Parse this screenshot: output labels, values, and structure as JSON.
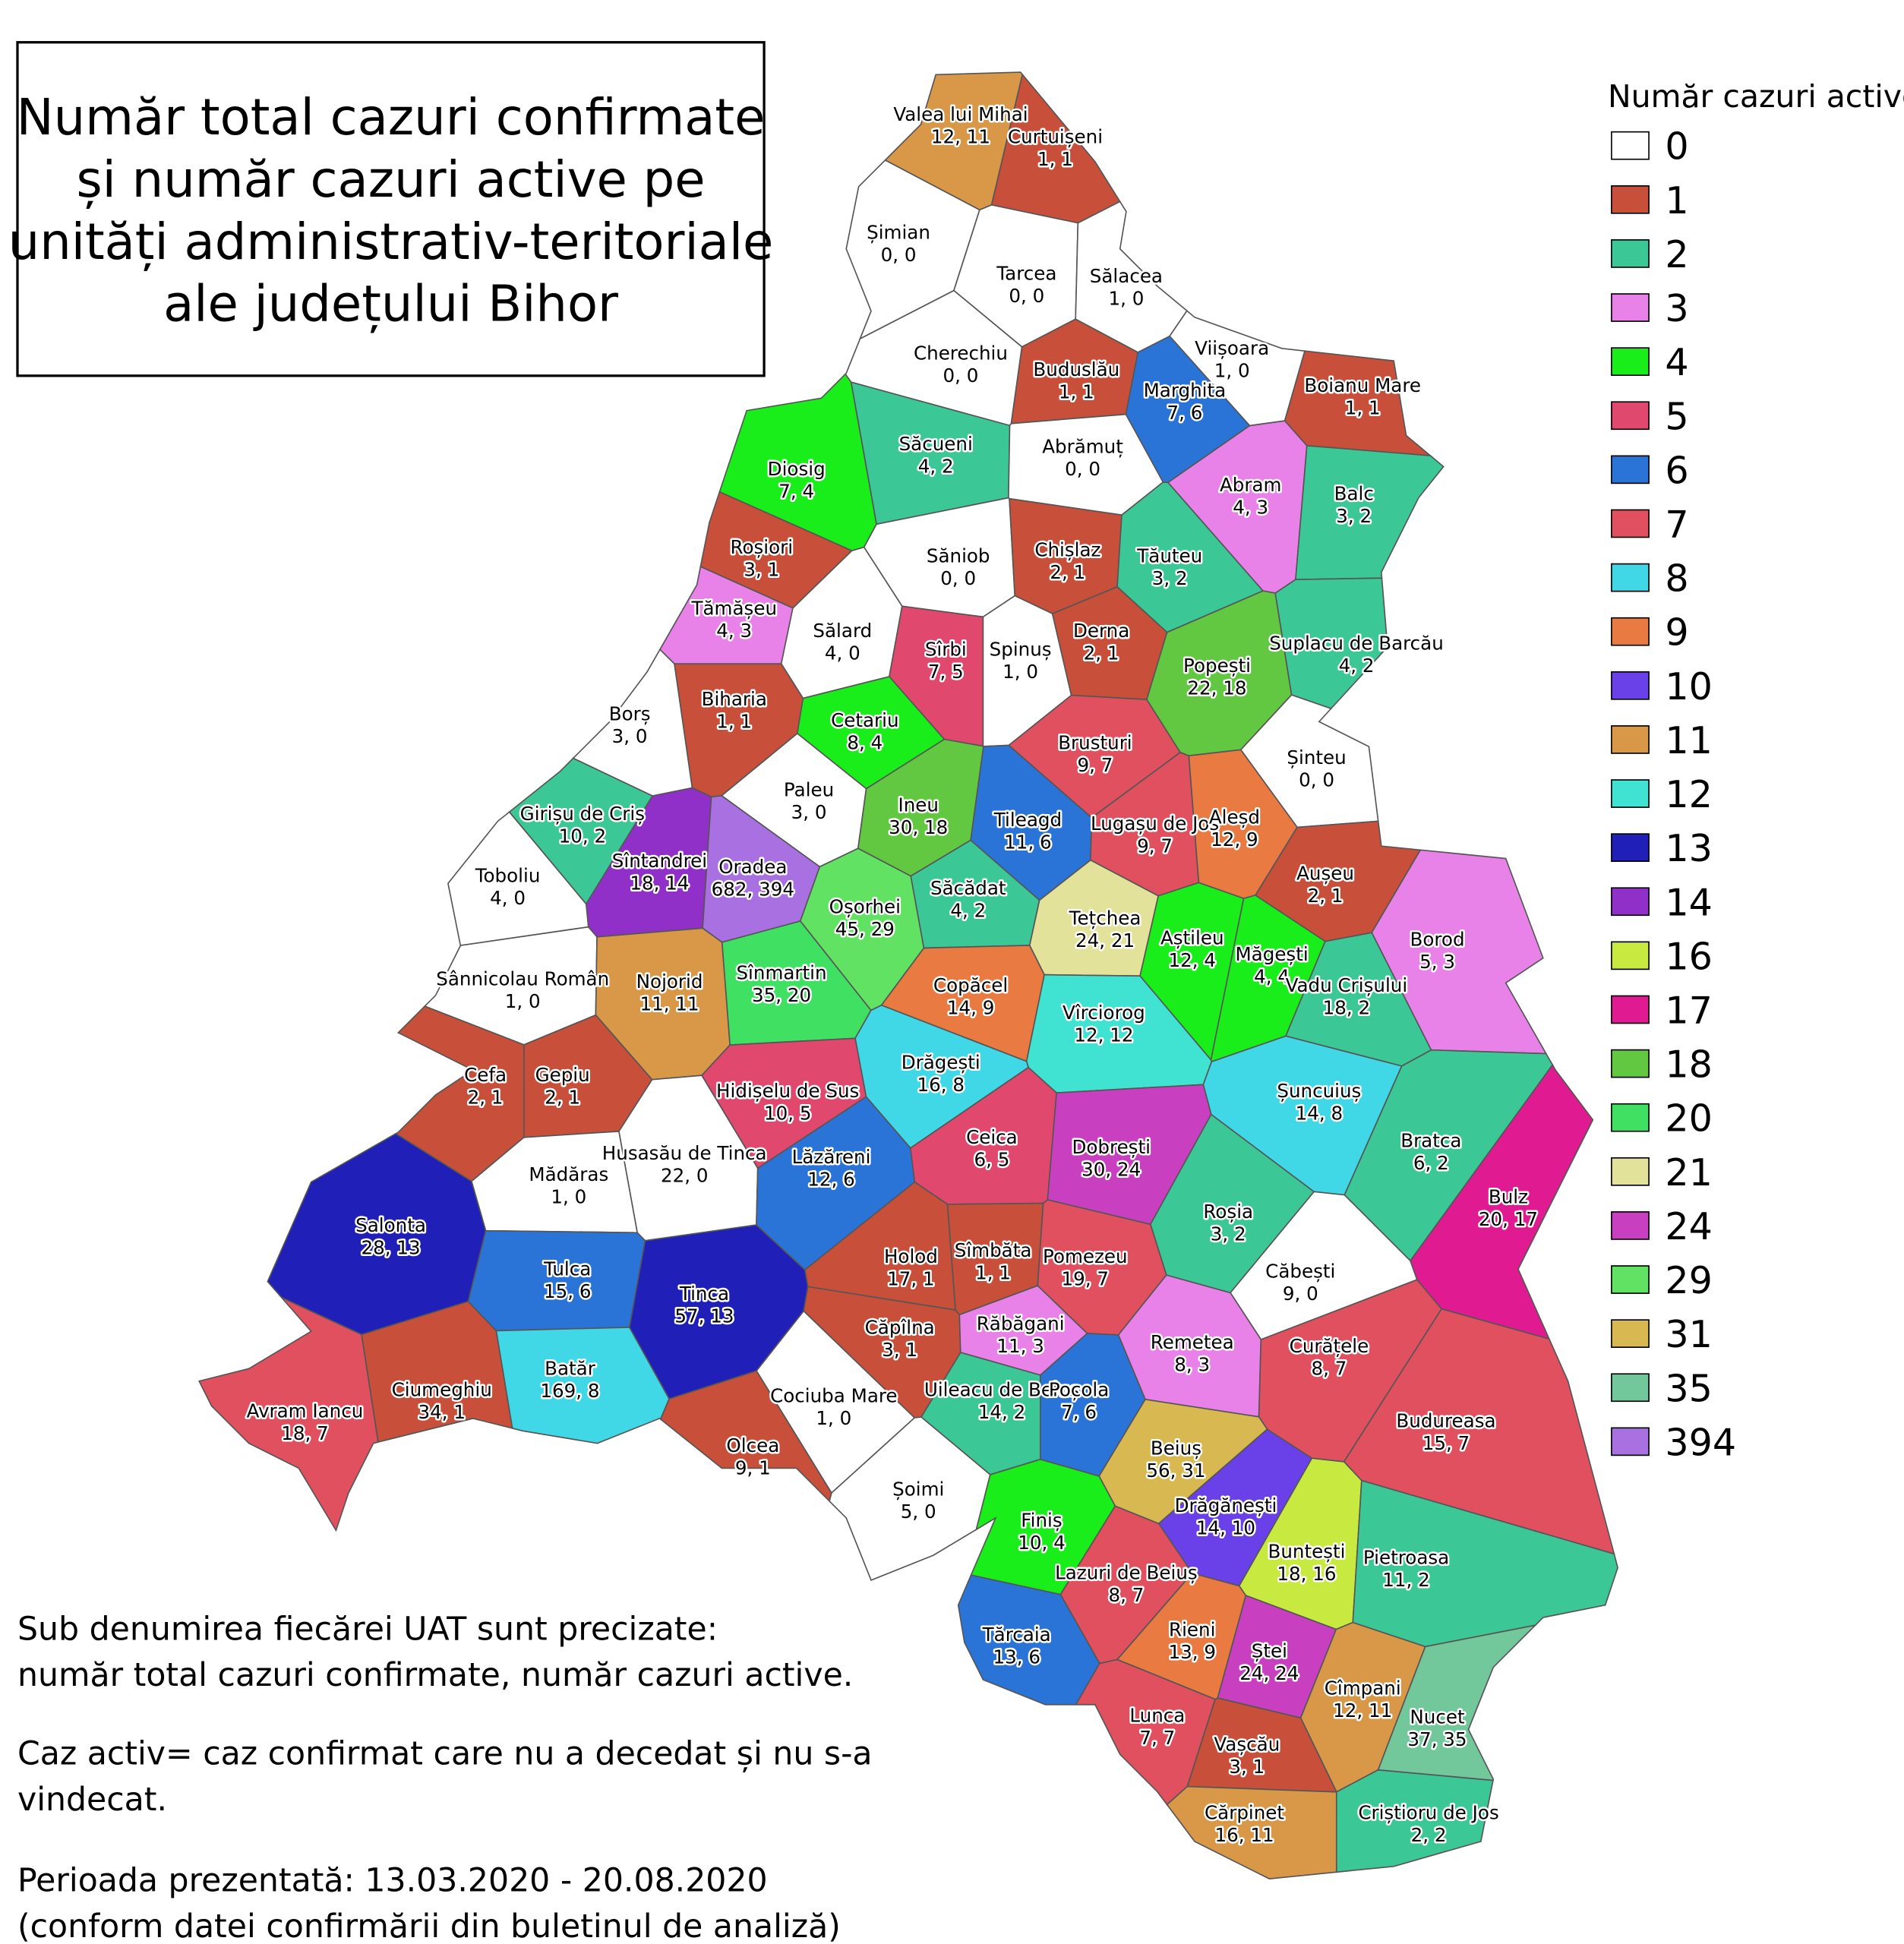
{
  "title": {
    "lines": [
      "Număr total cazuri confirmate",
      "și număr cazuri active pe",
      "unități administrativ-teritoriale",
      "ale județului Bihor"
    ]
  },
  "legend": {
    "title": "Număr cazuri active",
    "items": [
      {
        "label": 0,
        "color": "#ffffff"
      },
      {
        "label": 1,
        "color": "#c8503a"
      },
      {
        "label": 2,
        "color": "#3cc896"
      },
      {
        "label": 3,
        "color": "#e882e8"
      },
      {
        "label": 4,
        "color": "#1aee1a"
      },
      {
        "label": 5,
        "color": "#e0486e"
      },
      {
        "label": 6,
        "color": "#2a74d8"
      },
      {
        "label": 7,
        "color": "#e0505e"
      },
      {
        "label": 8,
        "color": "#40d8e6"
      },
      {
        "label": 9,
        "color": "#e87a42"
      },
      {
        "label": 10,
        "color": "#6a40e8"
      },
      {
        "label": 11,
        "color": "#d89848"
      },
      {
        "label": 12,
        "color": "#40e2d2"
      },
      {
        "label": 13,
        "color": "#2020b8"
      },
      {
        "label": 14,
        "color": "#9030c8"
      },
      {
        "label": 16,
        "color": "#c8ea40"
      },
      {
        "label": 17,
        "color": "#e01a90"
      },
      {
        "label": 18,
        "color": "#62c842"
      },
      {
        "label": 20,
        "color": "#40e062"
      },
      {
        "label": 21,
        "color": "#e2e29a"
      },
      {
        "label": 24,
        "color": "#c840c0"
      },
      {
        "label": 29,
        "color": "#62e262"
      },
      {
        "label": 31,
        "color": "#d8b850"
      },
      {
        "label": 35,
        "color": "#72c89a"
      },
      {
        "label": 394,
        "color": "#a870e0"
      }
    ]
  },
  "notes": [
    "Sub denumirea fiecărei UAT sunt precizate:",
    "număr total cazuri confirmate, număr cazuri active.",
    "Caz activ= caz confirmat care nu a decedat și nu s-a",
    "vindecat.",
    "Perioada prezentată: 13.03.2020 - 20.08.2020",
    "(conform datei confirmării din buletinul de analiză)"
  ],
  "regions": [
    {
      "name": "Valea lui Mihai",
      "counts": "12, 11",
      "active": 11
    },
    {
      "name": "Curtuișeni",
      "counts": "1, 1",
      "active": 1
    },
    {
      "name": "Șimian",
      "counts": "0, 0",
      "active": 0
    },
    {
      "name": "Tarcea",
      "counts": "0, 0",
      "active": 0
    },
    {
      "name": "Sălacea",
      "counts": "1, 0",
      "active": 0
    },
    {
      "name": "Cherechiu",
      "counts": "0, 0",
      "active": 0
    },
    {
      "name": "Buduslău",
      "counts": "1, 1",
      "active": 1
    },
    {
      "name": "Viișoara",
      "counts": "1, 0",
      "active": 0
    },
    {
      "name": "Marghita",
      "counts": "7, 6",
      "active": 6
    },
    {
      "name": "Boianu Mare",
      "counts": "1, 1",
      "active": 1
    },
    {
      "name": "Săcueni",
      "counts": "4, 2",
      "active": 2
    },
    {
      "name": "Abrămuț",
      "counts": "0, 0",
      "active": 0
    },
    {
      "name": "Diosig",
      "counts": "7, 4",
      "active": 4
    },
    {
      "name": "Abram",
      "counts": "4, 3",
      "active": 3
    },
    {
      "name": "Balc",
      "counts": "3, 2",
      "active": 2
    },
    {
      "name": "Roșiori",
      "counts": "3, 1",
      "active": 1
    },
    {
      "name": "Săniob",
      "counts": "0, 0",
      "active": 0
    },
    {
      "name": "Chișlaz",
      "counts": "2, 1",
      "active": 1
    },
    {
      "name": "Tăuteu",
      "counts": "3, 2",
      "active": 2
    },
    {
      "name": "Tămășeu",
      "counts": "4, 3",
      "active": 3
    },
    {
      "name": "Sălard",
      "counts": "4, 0",
      "active": 0
    },
    {
      "name": "Sîrbi",
      "counts": "7, 5",
      "active": 5
    },
    {
      "name": "Spinuș",
      "counts": "1, 0",
      "active": 0
    },
    {
      "name": "Derna",
      "counts": "2, 1",
      "active": 1
    },
    {
      "name": "Popești",
      "counts": "22, 18",
      "active": 18
    },
    {
      "name": "Suplacu de Barcău",
      "counts": "4, 2",
      "active": 2
    },
    {
      "name": "Biharia",
      "counts": "1, 1",
      "active": 1
    },
    {
      "name": "Borș",
      "counts": "3, 0",
      "active": 0
    },
    {
      "name": "Cetariu",
      "counts": "8, 4",
      "active": 4
    },
    {
      "name": "Brusturi",
      "counts": "9, 7",
      "active": 7
    },
    {
      "name": "Șinteu",
      "counts": "0, 0",
      "active": 0
    },
    {
      "name": "Paleu",
      "counts": "3, 0",
      "active": 0
    },
    {
      "name": "Ineu",
      "counts": "30, 18",
      "active": 18
    },
    {
      "name": "Tileagd",
      "counts": "11, 6",
      "active": 6
    },
    {
      "name": "Lugașu de Jos",
      "counts": "9, 7",
      "active": 7
    },
    {
      "name": "Aleșd",
      "counts": "12, 9",
      "active": 9
    },
    {
      "name": "Girișu de Criș",
      "counts": "10, 2",
      "active": 2
    },
    {
      "name": "Sîntandrei",
      "counts": "18, 14",
      "active": 14
    },
    {
      "name": "Oradea",
      "counts": "682, 394",
      "active": 394
    },
    {
      "name": "Toboliu",
      "counts": "4, 0",
      "active": 0
    },
    {
      "name": "Aușeu",
      "counts": "2, 1",
      "active": 1
    },
    {
      "name": "Oșorhei",
      "counts": "45, 29",
      "active": 29
    },
    {
      "name": "Săcădat",
      "counts": "4, 2",
      "active": 2
    },
    {
      "name": "Tețchea",
      "counts": "24, 21",
      "active": 21
    },
    {
      "name": "Borod",
      "counts": "5, 3",
      "active": 3
    },
    {
      "name": "Aștileu",
      "counts": "12, 4",
      "active": 4
    },
    {
      "name": "Măgești",
      "counts": "4, 4",
      "active": 4
    },
    {
      "name": "Sânnicolau Român",
      "counts": "1, 0",
      "active": 0
    },
    {
      "name": "Nojorid",
      "counts": "11, 11",
      "active": 11
    },
    {
      "name": "Sînmartin",
      "counts": "35, 20",
      "active": 20
    },
    {
      "name": "Copăcel",
      "counts": "14, 9",
      "active": 9
    },
    {
      "name": "Vîrciorog",
      "counts": "12, 12",
      "active": 12
    },
    {
      "name": "Vadu Crișului",
      "counts": "18, 2",
      "active": 2
    },
    {
      "name": "Drăgești",
      "counts": "16, 8",
      "active": 8
    },
    {
      "name": "Cefa",
      "counts": "2, 1",
      "active": 1
    },
    {
      "name": "Gepiu",
      "counts": "2, 1",
      "active": 1
    },
    {
      "name": "Hidișelu de Sus",
      "counts": "10, 5",
      "active": 5
    },
    {
      "name": "Șuncuiuș",
      "counts": "14, 8",
      "active": 8
    },
    {
      "name": "Husasău de Tinca",
      "counts": "22, 0",
      "active": 0
    },
    {
      "name": "Lăzăreni",
      "counts": "12, 6",
      "active": 6
    },
    {
      "name": "Ceica",
      "counts": "6, 5",
      "active": 5
    },
    {
      "name": "Dobrești",
      "counts": "30, 24",
      "active": 24
    },
    {
      "name": "Bratca",
      "counts": "6, 2",
      "active": 2
    },
    {
      "name": "Mădăras",
      "counts": "1, 0",
      "active": 0
    },
    {
      "name": "Roșia",
      "counts": "3, 2",
      "active": 2
    },
    {
      "name": "Bulz",
      "counts": "20, 17",
      "active": 17
    },
    {
      "name": "Salonta",
      "counts": "28, 13",
      "active": 13
    },
    {
      "name": "Tulca",
      "counts": "15, 6",
      "active": 6
    },
    {
      "name": "Holod",
      "counts": "17, 1",
      "active": 1
    },
    {
      "name": "Sîmbăta",
      "counts": "1, 1",
      "active": 1
    },
    {
      "name": "Pomezeu",
      "counts": "19, 7",
      "active": 7
    },
    {
      "name": "Tinca",
      "counts": "57, 13",
      "active": 13
    },
    {
      "name": "Căbești",
      "counts": "9, 0",
      "active": 0
    },
    {
      "name": "Batăr",
      "counts": "169, 8",
      "active": 8
    },
    {
      "name": "Căpîlna",
      "counts": "3, 1",
      "active": 1
    },
    {
      "name": "Răbăgani",
      "counts": "11, 3",
      "active": 3
    },
    {
      "name": "Remetea",
      "counts": "8, 3",
      "active": 3
    },
    {
      "name": "Curățele",
      "counts": "8, 7",
      "active": 7
    },
    {
      "name": "Avram Iancu",
      "counts": "18, 7",
      "active": 7
    },
    {
      "name": "Ciumeghiu",
      "counts": "34, 1",
      "active": 1
    },
    {
      "name": "Uileacu de Beiuș",
      "counts": "14, 2",
      "active": 2
    },
    {
      "name": "Cociuba Mare",
      "counts": "1, 0",
      "active": 0
    },
    {
      "name": "Pocola",
      "counts": "7, 6",
      "active": 6
    },
    {
      "name": "Budureasa",
      "counts": "15, 7",
      "active": 7
    },
    {
      "name": "Beiuș",
      "counts": "56, 31",
      "active": 31
    },
    {
      "name": "Olcea",
      "counts": "9, 1",
      "active": 1
    },
    {
      "name": "Șoimi",
      "counts": "5, 0",
      "active": 0
    },
    {
      "name": "Finiș",
      "counts": "10, 4",
      "active": 4
    },
    {
      "name": "Drăgănești",
      "counts": "14, 10",
      "active": 10
    },
    {
      "name": "Buntești",
      "counts": "18, 16",
      "active": 16
    },
    {
      "name": "Lazuri de Beiuș",
      "counts": "8, 7",
      "active": 7
    },
    {
      "name": "Pietroasa",
      "counts": "11, 2",
      "active": 2
    },
    {
      "name": "Rieni",
      "counts": "13, 9",
      "active": 9
    },
    {
      "name": "Tărcaia",
      "counts": "13, 6",
      "active": 6
    },
    {
      "name": "Ștei",
      "counts": "24, 24",
      "active": 24
    },
    {
      "name": "Cîmpani",
      "counts": "12, 11",
      "active": 11
    },
    {
      "name": "Nucet",
      "counts": "37, 35",
      "active": 35
    },
    {
      "name": "Lunca",
      "counts": "7, 7",
      "active": 7
    },
    {
      "name": "Vașcău",
      "counts": "3, 1",
      "active": 1
    },
    {
      "name": "Cărpinet",
      "counts": "16, 11",
      "active": 11
    },
    {
      "name": "Criștioru de Jos",
      "counts": "2, 2",
      "active": 2
    }
  ]
}
